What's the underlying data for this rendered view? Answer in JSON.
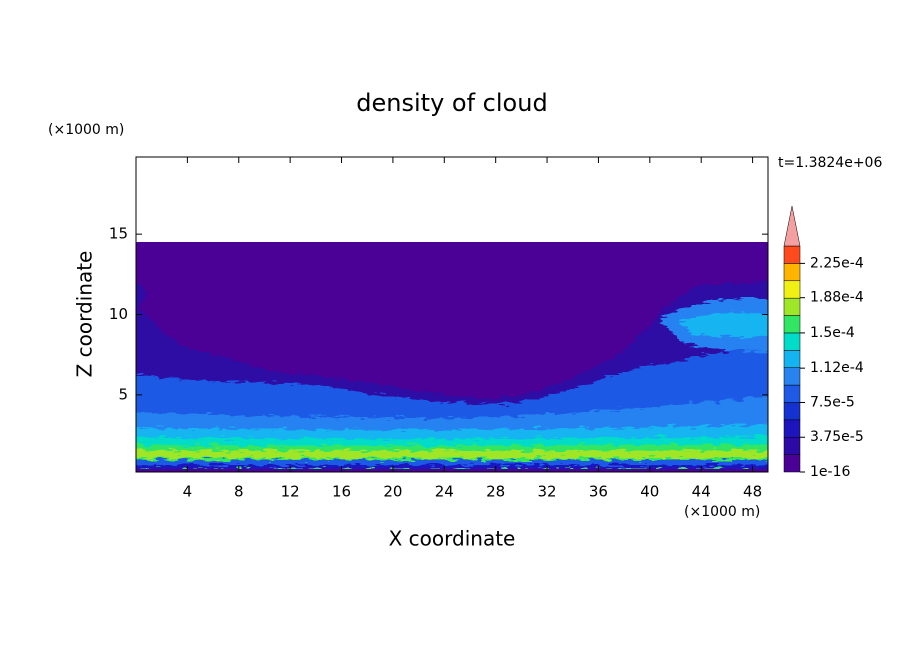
{
  "chart_data": {
    "type": "contour",
    "title": "density of cloud",
    "xlabel": "X coordinate",
    "ylabel": "Z coordinate",
    "xunit_label": "(×1000 m)",
    "yunit_label": "(×1000 m)",
    "time_label": "t=1.3824e+06",
    "xlim": [
      0,
      49.2
    ],
    "ylim": [
      0.2,
      19.8
    ],
    "xticks": [
      4,
      8,
      12,
      16,
      20,
      24,
      28,
      32,
      36,
      40,
      44,
      48
    ],
    "yticks": [
      5,
      10,
      15
    ],
    "colorbar": {
      "lim": [
        1e-16,
        0.00024375
      ],
      "colors": [
        "#4b0096",
        "#2d0aa5",
        "#1e14be",
        "#1432d2",
        "#1e5ae6",
        "#2882f0",
        "#14b4f0",
        "#00dcc8",
        "#32e664",
        "#a0e628",
        "#f0f014",
        "#ffb400",
        "#ff4a1e"
      ],
      "extend_color": "#f5a0a0",
      "ticks": [
        {
          "value": 1e-16,
          "label": "1e-16"
        },
        {
          "value": 3.75e-05,
          "label": "3.75e-5"
        },
        {
          "value": 7.5e-05,
          "label": "7.5e-5"
        },
        {
          "value": 0.000112,
          "label": "1.12e-4"
        },
        {
          "value": 0.00015,
          "label": "1.5e-4"
        },
        {
          "value": 0.000188,
          "label": "1.88e-4"
        },
        {
          "value": 0.000225,
          "label": "2.25e-4"
        }
      ]
    }
  }
}
